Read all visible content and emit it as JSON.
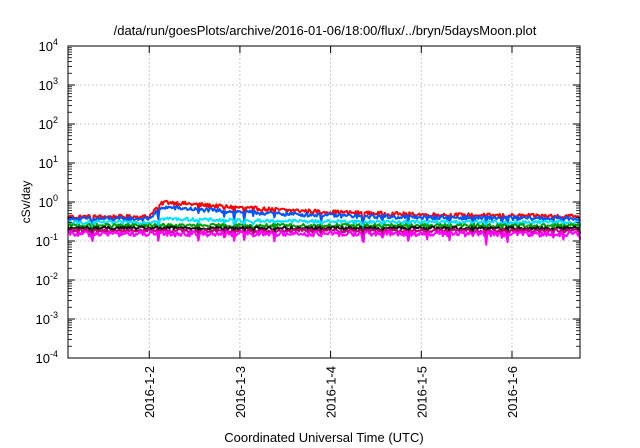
{
  "chart_data": {
    "type": "line",
    "title": "/data/run/goesPlots/archive/2016-01-06/18:00/flux/../bryn/5daysMoon.plot",
    "xlabel": "Coordinated Universal Time (UTC)",
    "ylabel": "cSv/day",
    "yscale": "log",
    "ylim": [
      0.0001,
      10000
    ],
    "xlim": [
      "2016-01-01T02:30",
      "2016-01-06T18:00"
    ],
    "grid": true,
    "x_ticks": [
      "2016-1-2",
      "2016-1-3",
      "2016-1-4",
      "2016-1-5",
      "2016-1-6"
    ],
    "y_ticks": [
      {
        "base": "10",
        "exp": "-4"
      },
      {
        "base": "10",
        "exp": "-3"
      },
      {
        "base": "10",
        "exp": "-2"
      },
      {
        "base": "10",
        "exp": "-1"
      },
      {
        "base": "10",
        "exp": "0"
      },
      {
        "base": "10",
        "exp": "1"
      },
      {
        "base": "10",
        "exp": "2"
      },
      {
        "base": "10",
        "exp": "3"
      },
      {
        "base": "10",
        "exp": "4"
      }
    ],
    "series": [
      {
        "color": "#ff0000",
        "base": 0.42,
        "noise": 0.12,
        "event": {
          "start": "2016-01-02T00:00",
          "peak": "2016-01-02T04:00",
          "factor": 2.4,
          "decay_hours": 30
        }
      },
      {
        "color": "#0055ff",
        "base": 0.37,
        "noise": 0.12,
        "event": {
          "start": "2016-01-02T00:00",
          "peak": "2016-01-02T04:00",
          "factor": 2.0,
          "decay_hours": 30
        }
      },
      {
        "color": "#00e5ff",
        "base": 0.3,
        "noise": 0.1,
        "event": {
          "start": "2016-01-02T00:00",
          "peak": "2016-01-02T04:00",
          "factor": 1.25,
          "decay_hours": 30
        }
      },
      {
        "color": "#00a000",
        "base": 0.25,
        "noise": 0.1,
        "event": null
      },
      {
        "color": "#111111",
        "base": 0.215,
        "noise": 0.1,
        "event": null
      },
      {
        "color": "#c00070",
        "base": 0.185,
        "noise": 0.11,
        "event": null
      },
      {
        "color": "#ff00ff",
        "base": 0.155,
        "noise": 0.16,
        "event": null
      }
    ]
  }
}
